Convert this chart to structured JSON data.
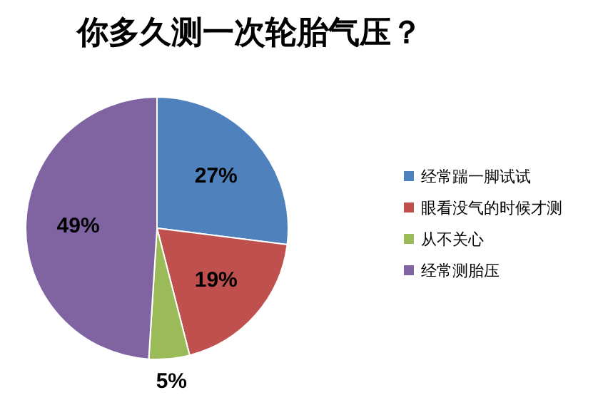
{
  "chart_data": {
    "type": "pie",
    "title": "你多久测一次轮胎气压？",
    "categories": [
      "经常踹一脚试试",
      "眼看没气的时候才测",
      "从不关心",
      "经常测胎压"
    ],
    "values": [
      27,
      19,
      5,
      49
    ],
    "colors": [
      "#4f81bd",
      "#c0504d",
      "#9bbb59",
      "#8064a2"
    ],
    "value_labels": [
      "27%",
      "19%",
      "5%",
      "49%"
    ],
    "legend": "right"
  }
}
